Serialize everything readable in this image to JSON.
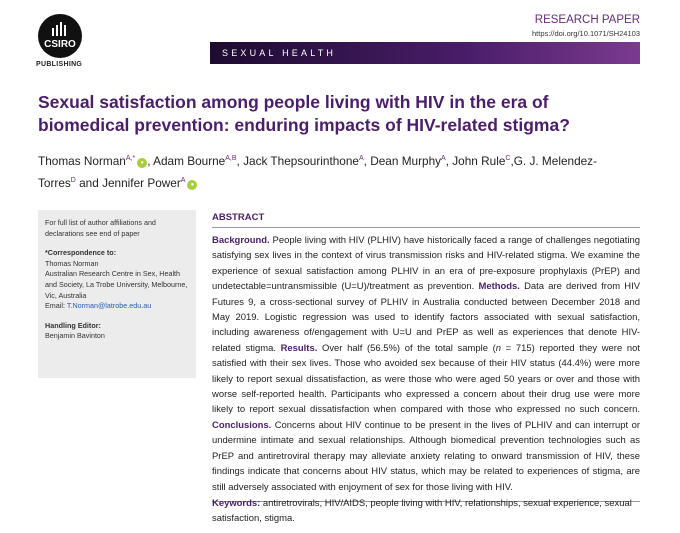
{
  "header": {
    "logo": "CSIRO",
    "publisher": "PUBLISHING",
    "article_type": "RESEARCH PAPER",
    "doi": "https://doi.org/10.1071/SH24103",
    "journal": "SEXUAL HEALTH"
  },
  "title": "Sexual satisfaction among people living with HIV in the era of biomedical prevention: enduring impacts of HIV-related stigma?",
  "authors": [
    {
      "name": "Thomas Norman",
      "affiliation": "A,*",
      "orcid": true,
      "after": ", "
    },
    {
      "name": "Adam Bourne",
      "affiliation": "A,B",
      "orcid": false,
      "after": ", "
    },
    {
      "name": "Jack Thepsourinthone",
      "affiliation": "A",
      "orcid": false,
      "after": ", "
    },
    {
      "name": "Dean Murphy",
      "affiliation": "A",
      "orcid": false,
      "after": ", "
    },
    {
      "name": "John Rule",
      "affiliation": "C",
      "orcid": false,
      "after": ","
    },
    {
      "name": "G. J. Melendez-Torres",
      "affiliation": "D",
      "orcid": false,
      "after": " and "
    },
    {
      "name": "Jennifer Power",
      "affiliation": "A",
      "orcid": true
    }
  ],
  "sidebar": {
    "note": "For full list of author affiliations and declarations see end of paper",
    "correspondence_label": "*Correspondence to:",
    "correspondence_name": "Thomas Norman",
    "correspondence_address": "Australian Research Centre in Sex, Health and Society, La Trobe University, Melbourne, Vic, Australia",
    "email_label": "Email:",
    "email": "T.Norman@latrobe.edu.au",
    "editor_label": "Handling Editor:",
    "editor": "Benjamin Bavinton"
  },
  "abstract": {
    "heading": "ABSTRACT",
    "parts": [
      {
        "style": "label",
        "text": "Background."
      },
      {
        "style": "normal",
        "text": " People living with HIV (PLHIV) have historically faced a range of challenges negotiating satisfying sex lives in the context of virus transmission risks and HIV-related stigma. We examine the experience of sexual satisfaction among PLHIV in an era of pre-exposure prophylaxis (PrEP) and undetectable=untransmissible (U=U)/treatment as prevention. "
      },
      {
        "style": "label",
        "text": "Methods."
      },
      {
        "style": "normal",
        "text": " Data are derived from HIV Futures 9, a cross-sectional survey of PLHIV in Australia conducted between December 2018 and May 2019. Logistic regression was used to identify factors associated with sexual satisfaction, including awareness of/engagement with U=U and PrEP as well as experiences that denote HIV-related stigma. "
      },
      {
        "style": "label",
        "text": "Results."
      },
      {
        "style": "normal",
        "text": " Over half (56.5%) of the total sample ("
      },
      {
        "style": "italic",
        "text": "n"
      },
      {
        "style": "normal",
        "text": " = 715) reported they were not satisfied with their sex lives. Those who avoided sex because of their HIV status (44.4%) were more likely to report sexual dissatisfaction, as were those who were aged 50 years or over and those with worse self-reported health. Participants who expressed a concern about their drug use were more likely to report sexual dissatisfaction when compared with those who expressed no such concern. "
      },
      {
        "style": "label",
        "text": "Conclusions."
      },
      {
        "style": "normal",
        "text": " Concerns about HIV continue to be present in the lives of PLHIV and can interrupt or undermine intimate and sexual relationships. Although biomedical prevention technologies such as PrEP and antiretroviral therapy may alleviate anxiety relating to onward transmission of HIV, these findings indicate that concerns about HIV status, which may be related to experiences of stigma, are still adversely associated with enjoyment of sex for those living with HIV."
      }
    ]
  },
  "keywords": {
    "label": "Keywords:",
    "text": " antiretrovirals, HIV/AIDS, people living with HIV, relationships, sexual experience, sexual satisfaction, stigma."
  }
}
